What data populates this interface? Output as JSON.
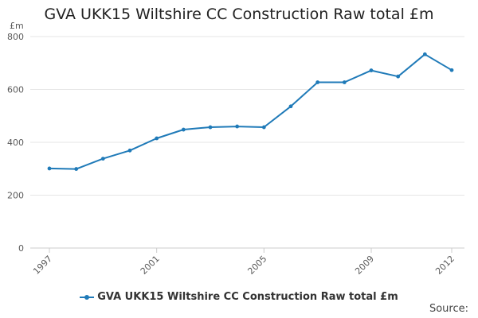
{
  "title": "GVA UKK15 Wiltshire CC Construction Raw total £m",
  "unit_label": "£m",
  "legend_label": "GVA UKK15 Wiltshire CC Construction Raw total £m",
  "source_label": "Source:",
  "colors": {
    "series": "#1f7ab8",
    "grid": "#e6e6e6",
    "axis": "#cccccc"
  },
  "chart_data": {
    "type": "line",
    "title": "GVA UKK15 Wiltshire CC Construction Raw total £m",
    "ylabel": "£m",
    "xlabel": "",
    "xlim": [
      1997,
      2012
    ],
    "ylim": [
      0,
      800
    ],
    "x_ticks": [
      1997,
      2001,
      2005,
      2009,
      2012
    ],
    "y_ticks": [
      0,
      200,
      400,
      600,
      800
    ],
    "grid": true,
    "legend_position": "bottom",
    "series": [
      {
        "name": "GVA UKK15 Wiltshire CC Construction Raw total £m",
        "x": [
          1997,
          1998,
          1999,
          2000,
          2001,
          2002,
          2003,
          2004,
          2005,
          2006,
          2007,
          2008,
          2009,
          2010,
          2011,
          2012
        ],
        "values": [
          301,
          299,
          338,
          369,
          415,
          448,
          457,
          460,
          457,
          536,
          627,
          627,
          672,
          649,
          733,
          673
        ]
      }
    ]
  }
}
